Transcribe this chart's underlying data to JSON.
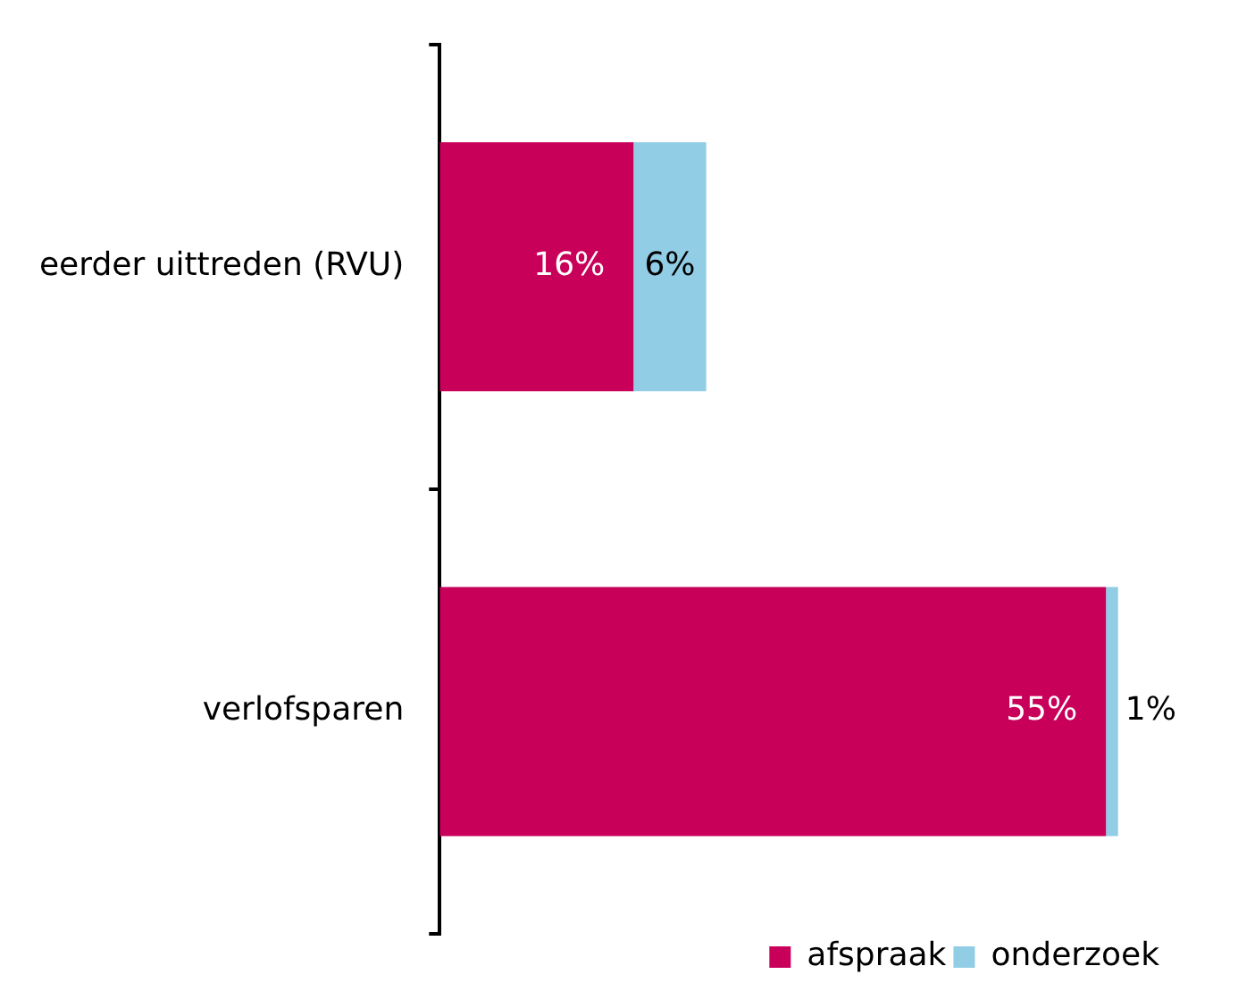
{
  "chart_data": {
    "type": "bar",
    "orientation": "horizontal",
    "stacked": true,
    "categories": [
      "eerder uittreden (RVU)",
      "verlofsparen"
    ],
    "series": [
      {
        "name": "afspraak",
        "color": "#c8005a",
        "values": [
          16,
          55
        ],
        "value_labels": [
          "16%",
          "55%"
        ]
      },
      {
        "name": "onderzoek",
        "color": "#92cde6",
        "values": [
          6,
          1
        ],
        "value_labels": [
          "6%",
          "1%"
        ]
      }
    ],
    "legend": "bottom right",
    "grid": false
  }
}
